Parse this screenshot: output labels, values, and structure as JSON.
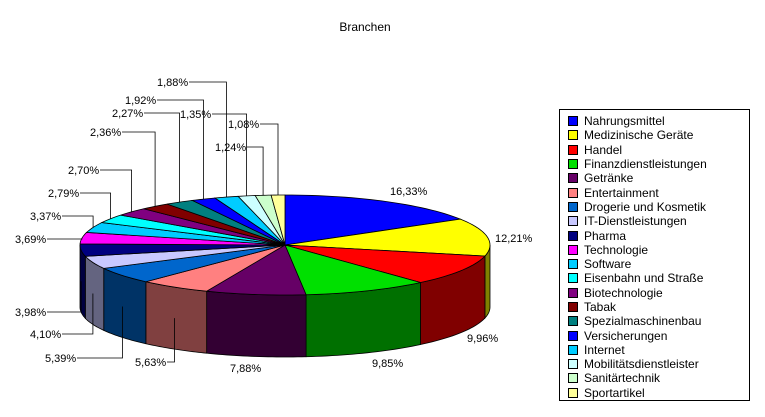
{
  "chart_data": {
    "type": "pie",
    "title": "Branchen",
    "legend_position": "right",
    "three_d": true,
    "slices": [
      {
        "name": "Nahrungsmittel",
        "value": 16.33,
        "label": "16,33%",
        "color": "#0000ff"
      },
      {
        "name": "Medizinische Geräte",
        "value": 12.21,
        "label": "12,21%",
        "color": "#ffff00"
      },
      {
        "name": "Handel",
        "value": 9.96,
        "label": "9,96%",
        "color": "#ff0000"
      },
      {
        "name": "Finanzdienstleistungen",
        "value": 9.85,
        "label": "9,85%",
        "color": "#00e000"
      },
      {
        "name": "Getränke",
        "value": 7.88,
        "label": "7,88%",
        "color": "#660066"
      },
      {
        "name": "Entertainment",
        "value": 5.63,
        "label": "5,63%",
        "color": "#ff8080"
      },
      {
        "name": "Drogerie und Kosmetik",
        "value": 5.39,
        "label": "5,39%",
        "color": "#0066cc"
      },
      {
        "name": "IT-Dienstleistungen",
        "value": 4.1,
        "label": "4,10%",
        "color": "#c8c8ff"
      },
      {
        "name": "Pharma",
        "value": 3.98,
        "label": "3,98%",
        "color": "#000080"
      },
      {
        "name": "Technologie",
        "value": 3.69,
        "label": "3,69%",
        "color": "#ff00ff"
      },
      {
        "name": "Software",
        "value": 3.37,
        "label": "3,37%",
        "color": "#00ccff"
      },
      {
        "name": "Eisenbahn und Straße",
        "value": 2.79,
        "label": "2,79%",
        "color": "#00ffff"
      },
      {
        "name": "Biotechnologie",
        "value": 2.7,
        "label": "2,70%",
        "color": "#800080"
      },
      {
        "name": "Tabak",
        "value": 2.36,
        "label": "2,36%",
        "color": "#800000"
      },
      {
        "name": "Spezialmaschinenbau",
        "value": 2.27,
        "label": "2,27%",
        "color": "#008080"
      },
      {
        "name": "Versicherungen",
        "value": 1.92,
        "label": "1,92%",
        "color": "#0000ff"
      },
      {
        "name": "Internet",
        "value": 1.88,
        "label": "1,88%",
        "color": "#00ccff"
      },
      {
        "name": "Mobilitätsdienstleister",
        "value": 1.35,
        "label": "1,35%",
        "color": "#ccffff"
      },
      {
        "name": "Sanitärtechnik",
        "value": 1.24,
        "label": "1,24%",
        "color": "#ccffcc"
      },
      {
        "name": "Sportartikel",
        "value": 1.08,
        "label": "1,08%",
        "color": "#ffff99"
      }
    ]
  }
}
